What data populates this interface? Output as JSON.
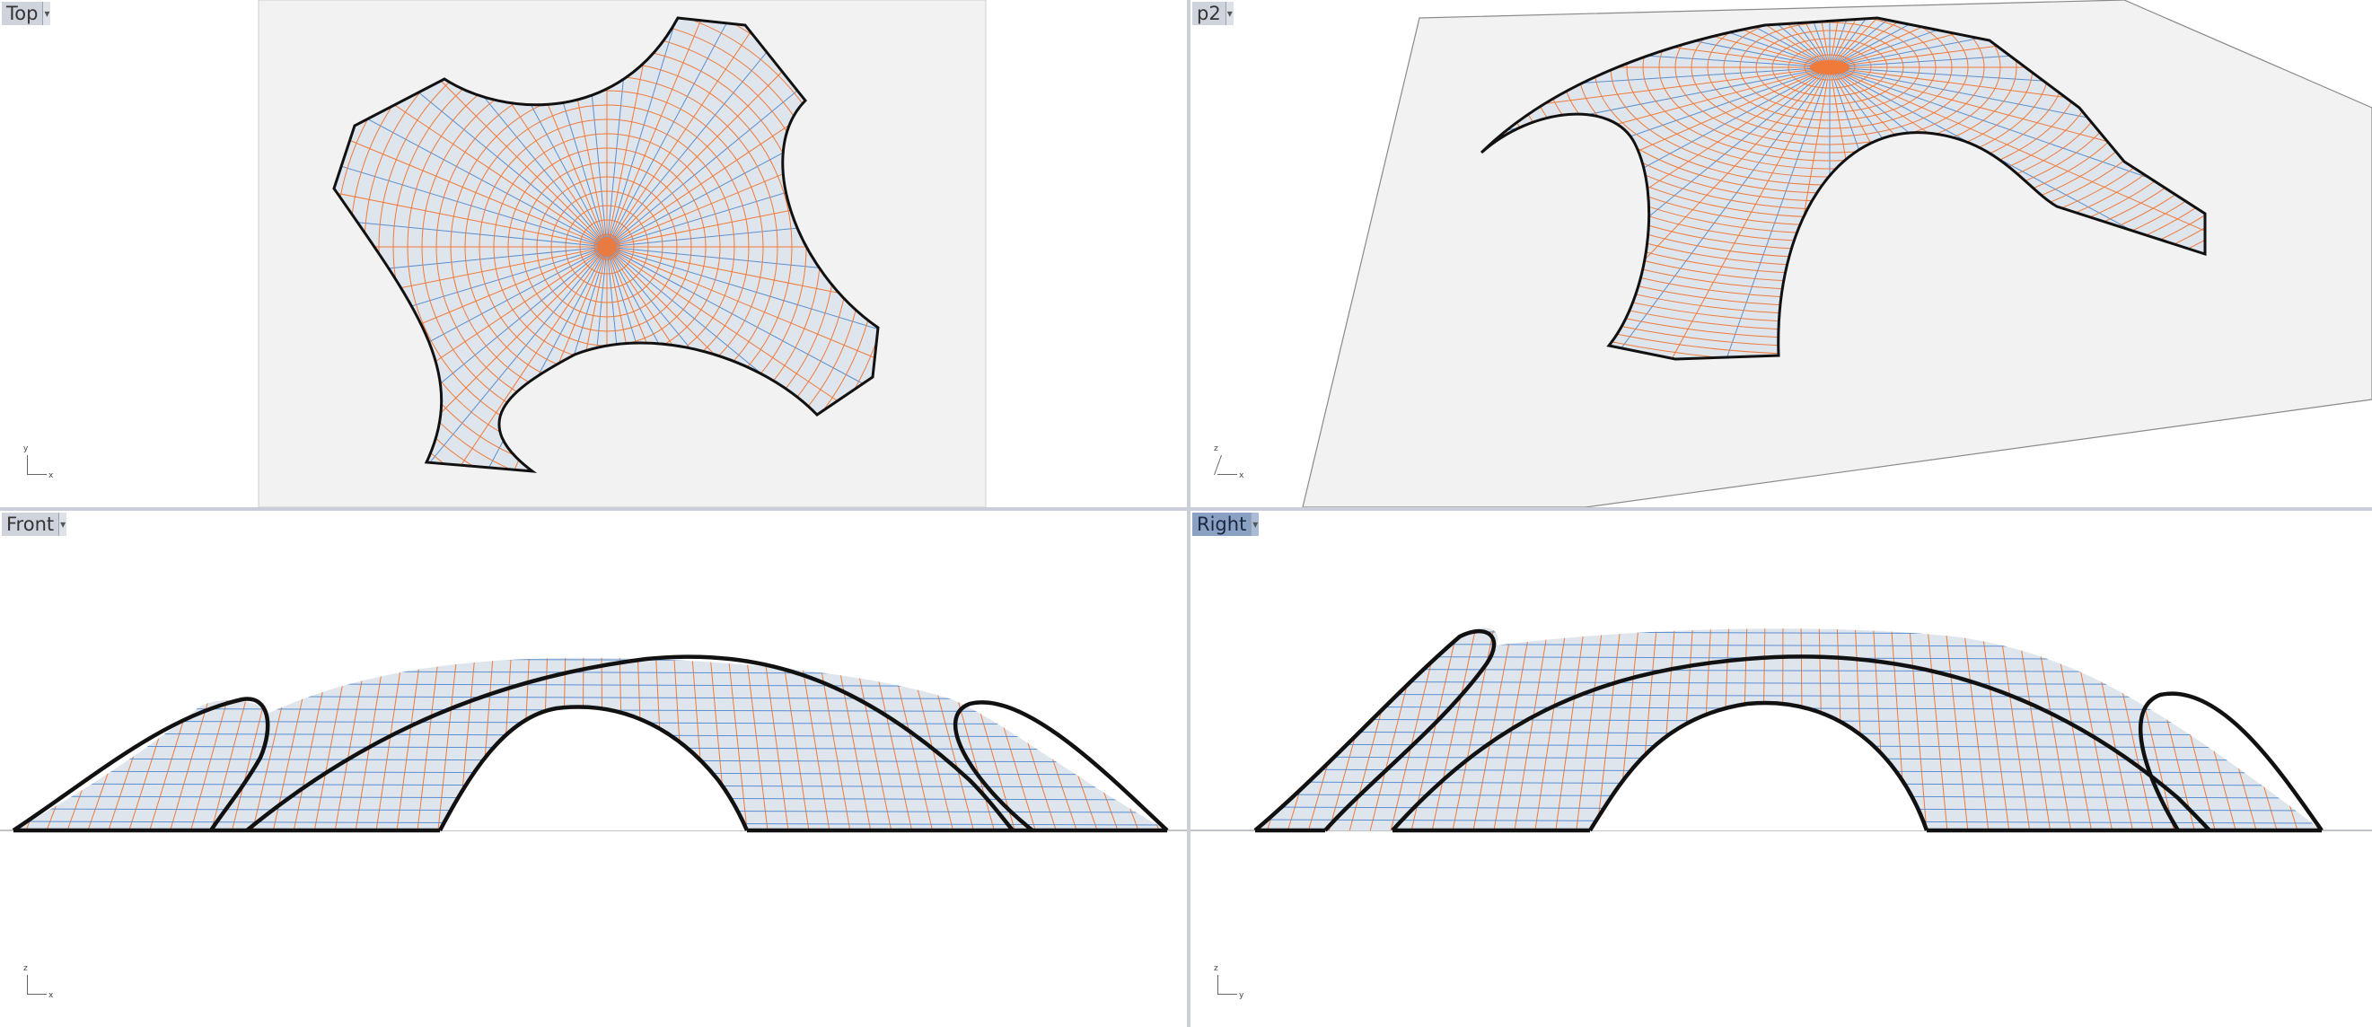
{
  "viewports": {
    "top": {
      "label": "Top",
      "axis_v": "y",
      "axis_h": "x",
      "active": false
    },
    "p2": {
      "label": "p2",
      "axis_v": "z",
      "axis_h": "x",
      "active": false
    },
    "front": {
      "label": "Front",
      "axis_v": "z",
      "axis_h": "x",
      "active": false
    },
    "right": {
      "label": "Right",
      "axis_v": "z",
      "axis_h": "y",
      "active": true
    }
  },
  "dropdown_glyph": "▾",
  "colors": {
    "surface_fill": "#dfe5ec",
    "isocurve_orange": "#f07a3a",
    "isocurve_blue": "#5a8fd0",
    "edge": "#111111",
    "cplane": "#f2f2f2",
    "active_label": "#8aa1c4"
  },
  "icons": {
    "dropdown": "chevron-down-icon",
    "axes": "axes-icon"
  }
}
